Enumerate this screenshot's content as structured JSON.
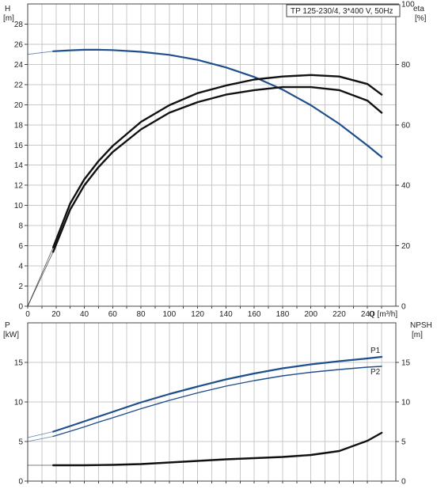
{
  "chart_data": [
    {
      "type": "line",
      "title": "TP 125-230/4, 3*400 V, 50Hz",
      "xlabel": "Q [m³/h]",
      "x_ticks": [
        "0",
        "20",
        "40",
        "60",
        "80",
        "100",
        "120",
        "140",
        "160",
        "180",
        "200",
        "220",
        "240"
      ],
      "xlim": [
        0,
        260
      ],
      "left_axis": {
        "label_line1": "H",
        "label_line2": "[m]",
        "lim": [
          0,
          30
        ],
        "ticks": [
          "0",
          "2",
          "4",
          "6",
          "8",
          "10",
          "12",
          "14",
          "16",
          "18",
          "20",
          "22",
          "24",
          "26",
          "28"
        ]
      },
      "right_axis": {
        "label_line1": "eta",
        "label_line2": "[%]",
        "lim": [
          0,
          100
        ],
        "ticks": [
          "0",
          "20",
          "40",
          "60",
          "80",
          "100"
        ]
      },
      "grid": true,
      "series": [
        {
          "axis": "left",
          "color": "#1f4e8c",
          "x": [
            0,
            18,
            30,
            40,
            50,
            60,
            80,
            100,
            120,
            140,
            160,
            180,
            200,
            220,
            240,
            250
          ],
          "y": [
            25.0,
            25.3,
            25.4,
            25.45,
            25.45,
            25.42,
            25.25,
            24.95,
            24.45,
            23.7,
            22.75,
            21.5,
            19.95,
            18.1,
            15.95,
            14.8
          ]
        },
        {
          "axis": "right",
          "color": "#111111",
          "x": [
            0,
            18,
            30,
            40,
            50,
            60,
            80,
            100,
            120,
            140,
            160,
            180,
            200,
            220,
            240,
            250
          ],
          "y": [
            0,
            18,
            32,
            40,
            46,
            51,
            58.5,
            64,
            67.5,
            70,
            71.5,
            72.5,
            72.5,
            71.5,
            68,
            64
          ]
        },
        {
          "axis": "right",
          "color": "#111111",
          "x": [
            0,
            18,
            30,
            40,
            50,
            60,
            80,
            100,
            120,
            140,
            160,
            180,
            200,
            220,
            240,
            250
          ],
          "y": [
            0,
            19.5,
            34,
            42,
            48,
            53,
            61,
            66.5,
            70.5,
            73,
            75,
            76,
            76.5,
            76,
            73.5,
            70
          ]
        }
      ],
      "solid_x_range": [
        18,
        250
      ]
    },
    {
      "type": "line",
      "xlim": [
        0,
        260
      ],
      "x_ticks": [],
      "left_axis": {
        "label_line1": "P",
        "label_line2": "[kW]",
        "lim": [
          0,
          20
        ],
        "ticks": [
          "0",
          "5",
          "10",
          "15"
        ]
      },
      "right_axis": {
        "label_line1": "NPSH",
        "label_line2": "[m]",
        "lim": [
          0,
          20
        ],
        "ticks": [
          "0",
          "5",
          "10",
          "15"
        ]
      },
      "grid": true,
      "series": [
        {
          "name": "P1",
          "axis": "left",
          "color": "#1f4e8c",
          "x": [
            0,
            18,
            30,
            40,
            50,
            60,
            80,
            100,
            120,
            140,
            160,
            180,
            200,
            220,
            240,
            250
          ],
          "y": [
            5.5,
            6.25,
            6.95,
            7.55,
            8.15,
            8.75,
            9.95,
            11.0,
            11.95,
            12.85,
            13.6,
            14.25,
            14.75,
            15.15,
            15.5,
            15.7
          ]
        },
        {
          "name": "P2",
          "axis": "left",
          "color": "#1f4e8c",
          "x": [
            0,
            18,
            30,
            40,
            50,
            60,
            80,
            100,
            120,
            140,
            160,
            180,
            200,
            220,
            240,
            250
          ],
          "y": [
            5.0,
            5.65,
            6.3,
            6.85,
            7.45,
            8.0,
            9.15,
            10.2,
            11.15,
            12.0,
            12.7,
            13.3,
            13.75,
            14.1,
            14.4,
            14.5
          ]
        },
        {
          "axis": "right",
          "color": "#111111",
          "x": [
            0,
            18,
            40,
            60,
            80,
            100,
            120,
            140,
            160,
            180,
            200,
            220,
            240,
            250
          ],
          "y": [
            2.0,
            2.0,
            2.0,
            2.05,
            2.15,
            2.35,
            2.55,
            2.75,
            2.9,
            3.05,
            3.3,
            3.8,
            5.1,
            6.1
          ]
        }
      ],
      "solid_x_range": [
        18,
        250
      ]
    }
  ]
}
